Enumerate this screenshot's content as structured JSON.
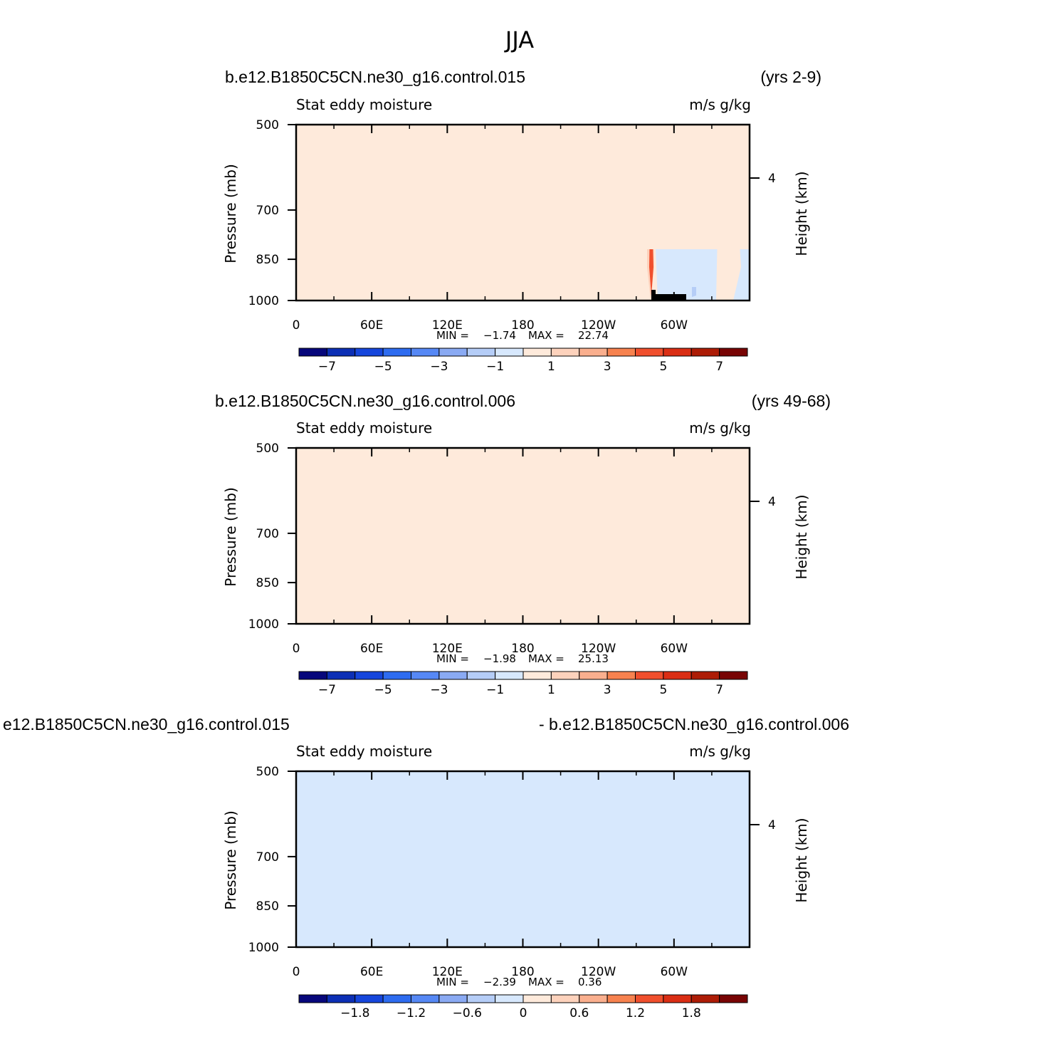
{
  "figure_title": "JJA",
  "colors": {
    "scale": [
      "#07077b",
      "#0c2fb5",
      "#1646dc",
      "#2e6cf0",
      "#5688f5",
      "#8aaaf3",
      "#b5cdf7",
      "#d7e8fd",
      "#feeadb",
      "#fdd2bc",
      "#faaf8e",
      "#f7824f",
      "#f04f2d",
      "#da2e14",
      "#ad1c06",
      "#780404"
    ],
    "land": "#000000"
  },
  "chart_data": [
    {
      "type": "heatmap",
      "case_left": "b.e12.B1850C5CN.ne30_g16.control.015",
      "case_right": "(yrs 2-9)",
      "left_string": "Stat eddy moisture",
      "right_string": "m/s g/kg",
      "ylabel": "Pressure (mb)",
      "ylabel_right": "Height (km)",
      "x_ticks": [
        "0",
        "60E",
        "120E",
        "180",
        "120W",
        "60W"
      ],
      "y_ticks": [
        "500",
        "700",
        "850",
        "1000"
      ],
      "y_ticks_right": [
        "4"
      ],
      "min_label": "MIN =",
      "min_value": "−1.74",
      "max_label": "MAX =",
      "max_value": "22.74",
      "colorbar_labels": [
        "−7",
        "−5",
        "−3",
        "−1",
        "1",
        "3",
        "5",
        "7"
      ]
    },
    {
      "type": "heatmap",
      "case_left": "b.e12.B1850C5CN.ne30_g16.control.006",
      "case_right": "(yrs 49-68)",
      "left_string": "Stat eddy moisture",
      "right_string": "m/s g/kg",
      "ylabel": "Pressure (mb)",
      "ylabel_right": "Height (km)",
      "x_ticks": [
        "0",
        "60E",
        "120E",
        "180",
        "120W",
        "60W"
      ],
      "y_ticks": [
        "500",
        "700",
        "850",
        "1000"
      ],
      "y_ticks_right": [
        "4"
      ],
      "min_label": "MIN =",
      "min_value": "−1.98",
      "max_label": "MAX =",
      "max_value": "25.13",
      "colorbar_labels": [
        "−7",
        "−5",
        "−3",
        "−1",
        "1",
        "3",
        "5",
        "7"
      ]
    },
    {
      "type": "heatmap",
      "case_left": "e12.B1850C5CN.ne30_g16.control.015",
      "case_right": "- b.e12.B1850C5CN.ne30_g16.control.006",
      "left_string": "Stat eddy moisture",
      "right_string": "m/s g/kg",
      "ylabel": "Pressure (mb)",
      "ylabel_right": "Height (km)",
      "x_ticks": [
        "0",
        "60E",
        "120E",
        "180",
        "120W",
        "60W"
      ],
      "y_ticks": [
        "500",
        "700",
        "850",
        "1000"
      ],
      "y_ticks_right": [
        "4"
      ],
      "min_label": "MIN =",
      "min_value": "−2.39",
      "max_label": "MAX =",
      "max_value": "0.36",
      "colorbar_labels": [
        "−1.8",
        "−1.2",
        "−0.6",
        "0",
        "0.6",
        "1.2",
        "1.8"
      ]
    }
  ]
}
